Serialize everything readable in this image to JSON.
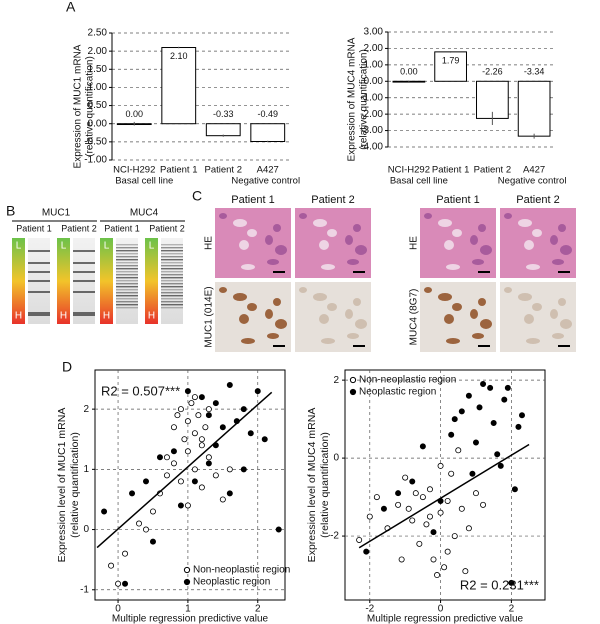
{
  "panel_labels": [
    "A",
    "B",
    "C",
    "D"
  ],
  "gel": {
    "groups": [
      {
        "title": "MUC1",
        "lanes": [
          "Patient 1",
          "Patient 2"
        ]
      },
      {
        "title": "MUC4",
        "lanes": [
          "Patient 1",
          "Patient 2"
        ]
      }
    ],
    "ladder_top": "L",
    "ladder_bottom": "H"
  },
  "histology": {
    "groups": [
      {
        "columns": [
          "Patient 1",
          "Patient 2"
        ],
        "rows": [
          "HE",
          "MUC1 (014E)"
        ]
      },
      {
        "columns": [
          "Patient 1",
          "Patient 2"
        ],
        "rows": [
          "HE",
          "MUC4 (8G7)"
        ]
      }
    ]
  },
  "chart_data": [
    {
      "type": "bar",
      "ylabel": [
        "Expression of MUC1 mRNA",
        "(relative quantification)"
      ],
      "categories": [
        "NCI-H292",
        "Patient 1",
        "Patient 2",
        "A427"
      ],
      "sublabels": [
        "Basal cell line",
        null,
        null,
        "Negative control"
      ],
      "values": [
        0,
        2.1,
        -0.33,
        -0.49
      ],
      "value_labels": [
        "0.00",
        "2.10",
        "-0.33",
        "-0.49"
      ],
      "errors": [
        0.05,
        0.02,
        0.03,
        0.02
      ],
      "color": "#ffffff",
      "ylim": [
        -1,
        2.5
      ],
      "yticks": [
        {
          "value": -1,
          "label": "-1.00"
        },
        {
          "value": -0.5,
          "label": "-0.50"
        },
        {
          "value": 0,
          "label": "0.00"
        },
        {
          "value": 0.5,
          "label": "0.50"
        },
        {
          "value": 1,
          "label": "1.00"
        },
        {
          "value": 1.5,
          "label": "1.50"
        },
        {
          "value": 2,
          "label": "2.00"
        },
        {
          "value": 2.5,
          "label": "2.50"
        }
      ],
      "grid": true
    },
    {
      "type": "bar",
      "ylabel": [
        "Expression of MUC4 mRNA",
        "(relative quantification)"
      ],
      "categories": [
        "NCI-H292",
        "Patient 1",
        "Patient 2",
        "A427"
      ],
      "sublabels": [
        "Basal cell line",
        null,
        null,
        "Negative control"
      ],
      "values": [
        0,
        1.79,
        -2.26,
        -3.34
      ],
      "value_labels": [
        "0.00",
        "1.79",
        "-2.26",
        "-3.34"
      ],
      "errors": [
        0.03,
        0.05,
        0.4,
        0.15
      ],
      "color": "#ffffff",
      "ylim": [
        -4,
        3
      ],
      "yticks": [
        {
          "value": -4,
          "label": "-4.00"
        },
        {
          "value": -3,
          "label": "-3.00"
        },
        {
          "value": -2,
          "label": "-2.00"
        },
        {
          "value": -1,
          "label": "-1.00"
        },
        {
          "value": 0,
          "label": "0.00"
        },
        {
          "value": 1,
          "label": "1.00"
        },
        {
          "value": 2,
          "label": "2.00"
        },
        {
          "value": 3,
          "label": "3.00"
        }
      ],
      "grid": true
    },
    {
      "type": "scatter",
      "xlabel": "Multiple regression predictive value",
      "ylabel": [
        "Expression level of MUC1 mRNA",
        "(relative quantification)"
      ],
      "annotation": "R2 = 0.507***",
      "xlim": [
        -0.33,
        2.39
      ],
      "ylim": [
        -1.17,
        2.65
      ],
      "xticks": [
        0,
        1,
        2
      ],
      "yticks": [
        -1,
        0,
        1,
        2
      ],
      "grid": true,
      "legend": "lower right",
      "trend": {
        "x": [
          -0.3,
          2.2
        ],
        "y": [
          -0.3,
          2.28
        ]
      },
      "series": [
        {
          "name": "Non-neoplastic region",
          "color": "#000000",
          "filled": false,
          "x": [
            -0.1,
            0.0,
            0.1,
            0.3,
            0.5,
            0.6,
            0.7,
            0.8,
            0.85,
            0.9,
            0.95,
            1.0,
            1.0,
            1.05,
            1.1,
            1.1,
            1.15,
            1.2,
            1.2,
            1.25,
            1.3,
            1.3,
            1.4,
            1.5,
            1.6,
            0.9,
            1.0,
            1.1,
            0.7,
            0.4,
            1.2,
            0.8
          ],
          "values": [
            -0.6,
            -0.9,
            -0.4,
            0.1,
            0.3,
            0.6,
            0.9,
            1.7,
            1.9,
            2.0,
            1.5,
            1.8,
            1.3,
            2.1,
            1.6,
            1.0,
            1.9,
            1.4,
            0.7,
            1.7,
            1.2,
            2.0,
            0.9,
            0.5,
            1.0,
            0.8,
            0.4,
            2.2,
            1.2,
            0.0,
            1.5,
            1.1
          ]
        },
        {
          "name": "Neoplastic region",
          "color": "#000000",
          "filled": true,
          "x": [
            -0.2,
            0.1,
            0.2,
            0.4,
            0.6,
            0.8,
            1.0,
            1.2,
            1.3,
            1.4,
            1.5,
            1.6,
            1.7,
            1.8,
            1.9,
            2.0,
            2.1,
            0.9,
            1.1,
            1.6,
            1.4,
            0.5,
            2.3,
            1.8,
            1.3
          ],
          "values": [
            0.3,
            -0.9,
            0.6,
            0.8,
            1.2,
            1.3,
            2.3,
            2.2,
            1.9,
            1.4,
            1.7,
            2.4,
            1.8,
            2.0,
            1.6,
            2.3,
            1.5,
            0.4,
            0.8,
            0.6,
            2.1,
            -0.2,
            0.0,
            1.0,
            1.1
          ]
        }
      ]
    },
    {
      "type": "scatter",
      "xlabel": "Multiple regression predictive value",
      "ylabel": [
        "Expression level of MUC4 mRNA",
        "(relative quantification)"
      ],
      "annotation": "R2 = 0.231***",
      "xlim": [
        -2.7,
        2.95
      ],
      "ylim": [
        -3.64,
        2.26
      ],
      "xticks": [
        -2,
        0,
        2
      ],
      "yticks": [
        -2,
        0,
        2
      ],
      "grid": true,
      "legend": "upper left",
      "trend": {
        "x": [
          -2.3,
          2.5
        ],
        "y": [
          -2.3,
          0.35
        ]
      },
      "series": [
        {
          "name": "Non-neoplastic region",
          "color": "#000000",
          "filled": false,
          "x": [
            -2.3,
            -2.0,
            -1.8,
            -1.5,
            -1.2,
            -1.0,
            -0.8,
            -0.6,
            -0.5,
            -0.3,
            -0.2,
            0,
            0.1,
            0.2,
            0.3,
            0.4,
            0.6,
            0.8,
            1.0,
            -0.4,
            -0.1,
            0.2,
            -0.7,
            -1.1,
            0.5,
            0.0,
            -0.3,
            1.2,
            0.7,
            -0.9
          ],
          "values": [
            -2.1,
            -1.5,
            -1.0,
            -1.8,
            -1.2,
            -0.5,
            -1.6,
            -2.2,
            -1.0,
            -0.8,
            -2.6,
            -1.4,
            -2.8,
            -1.1,
            -0.4,
            -2.0,
            -1.3,
            -1.8,
            -0.9,
            -1.7,
            -3.0,
            -2.4,
            -0.9,
            -2.6,
            0.2,
            -0.2,
            -1.5,
            -1.2,
            -2.9,
            -1.3
          ]
        },
        {
          "name": "Neoplastic region",
          "color": "#000000",
          "filled": true,
          "x": [
            -2.1,
            -1.6,
            -1.2,
            -0.8,
            -0.5,
            0.0,
            0.3,
            0.6,
            0.8,
            1.0,
            1.2,
            1.4,
            1.6,
            1.8,
            2.0,
            2.2,
            2.3,
            0.9,
            1.5,
            1.9,
            1.1,
            0.4,
            -0.2,
            2.1,
            1.7
          ],
          "values": [
            -2.4,
            -1.3,
            -0.9,
            -0.6,
            0.3,
            -1.1,
            0.6,
            1.2,
            1.6,
            0.4,
            1.9,
            1.8,
            0.1,
            1.5,
            -3.2,
            0.8,
            1.1,
            -0.4,
            0.9,
            1.8,
            1.3,
            1.0,
            -1.9,
            -0.8,
            -0.2
          ]
        }
      ]
    }
  ]
}
